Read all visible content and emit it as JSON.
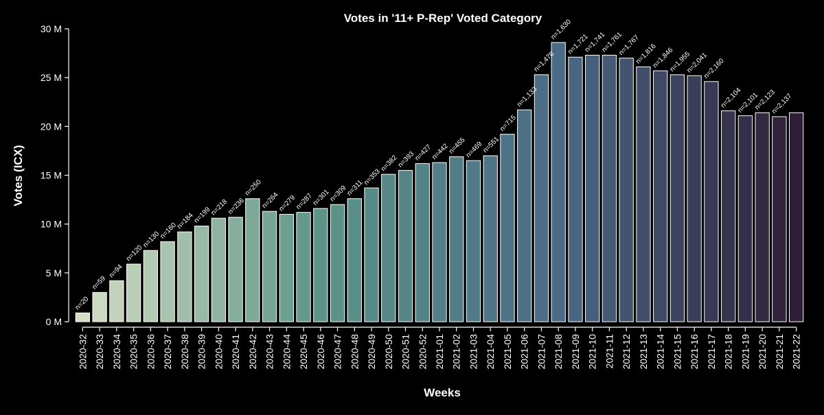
{
  "chart_data": {
    "type": "bar",
    "title": "Votes in '11+ P-Rep' Voted Category",
    "xlabel": "Weeks",
    "ylabel": "Votes (ICX)",
    "ylim": [
      0,
      30000000
    ],
    "y_ticks": [
      0,
      5000000,
      10000000,
      15000000,
      20000000,
      25000000,
      30000000
    ],
    "y_tick_labels": [
      "0 M",
      "5 M",
      "10 M",
      "15 M",
      "20 M",
      "25 M",
      "30 M"
    ],
    "grid": false,
    "legend": "none",
    "categories": [
      "2020-32",
      "2020-33",
      "2020-34",
      "2020-35",
      "2020-36",
      "2020-37",
      "2020-38",
      "2020-39",
      "2020-40",
      "2020-41",
      "2020-42",
      "2020-43",
      "2020-44",
      "2020-45",
      "2020-46",
      "2020-47",
      "2020-48",
      "2020-49",
      "2020-50",
      "2020-51",
      "2020-52",
      "2021-01",
      "2021-02",
      "2021-03",
      "2021-04",
      "2021-05",
      "2021-06",
      "2021-07",
      "2021-08",
      "2021-09",
      "2021-10",
      "2021-11",
      "2021-12",
      "2021-13",
      "2021-14",
      "2021-15",
      "2021-16",
      "2021-17",
      "2021-18",
      "2021-19",
      "2021-20",
      "2021-21",
      "2021-22"
    ],
    "values": [
      900000,
      3000000,
      4200000,
      5900000,
      7300000,
      8200000,
      9200000,
      9800000,
      10600000,
      10700000,
      12600000,
      11300000,
      11000000,
      11200000,
      11600000,
      12000000,
      12600000,
      13700000,
      15100000,
      15500000,
      16200000,
      16300000,
      16900000,
      16500000,
      17000000,
      19200000,
      21700000,
      25300000,
      28600000,
      27100000,
      27300000,
      27300000,
      27000000,
      26100000,
      25700000,
      25300000,
      25200000,
      24600000,
      21600000,
      21100000,
      21400000,
      21000000,
      21400000
    ],
    "bar_labels": [
      "n=20",
      "n=59",
      "n=94",
      "n=120",
      "n=130",
      "n=160",
      "n=184",
      "n=199",
      "n=218",
      "n=236",
      "n=250",
      "n=264",
      "n=279",
      "n=287",
      "n=301",
      "n=309",
      "n=311",
      "n=353",
      "n=382",
      "n=393",
      "n=427",
      "n=442",
      "n=455",
      "n=469",
      "n=551",
      "n=715",
      "n=1,133",
      "n=1,478",
      "n=1,630",
      "n=1,721",
      "n=1,741",
      "n=1,761",
      "n=1,767",
      "n=1,816",
      "n=1,846",
      "n=1,955",
      "n=2,041",
      "n=2,160",
      "n=2,104",
      "n=2,101",
      "n=2,123",
      "n=2,137",
      ""
    ],
    "colors": {
      "background": "#000000",
      "axis": "#ffffff",
      "text": "#ffffff",
      "bar_edge": "#ffffff",
      "palette_start": "#d4dec3",
      "palette_mid": "#5c9488",
      "palette_mid2": "#4b6a85",
      "palette_end": "#2e1e38"
    }
  }
}
